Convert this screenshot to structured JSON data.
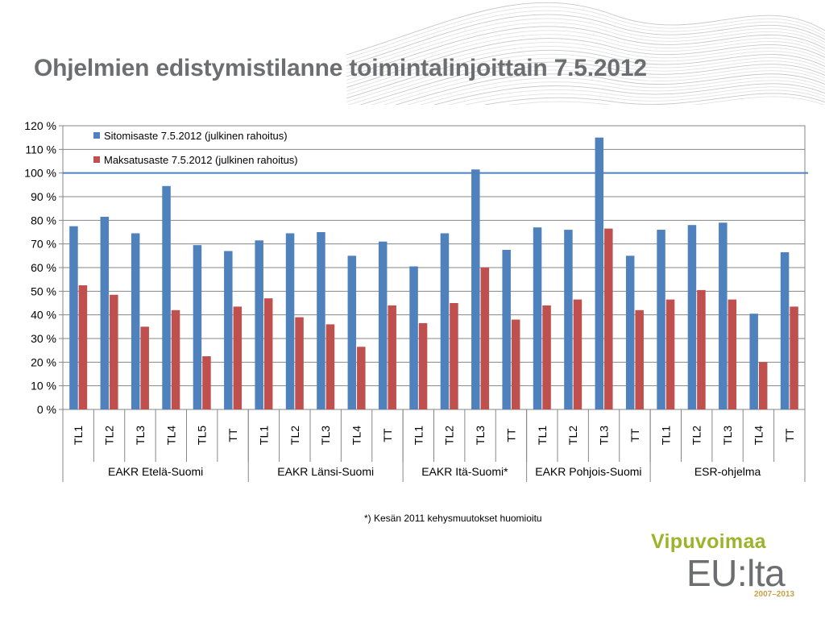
{
  "slide": {
    "title": "Ohjelmien edistymistilanne toimintalinjoittain 7.5.2012",
    "footnote": "*) Kesän 2011 kehysmuutokset huomioitu",
    "logo": {
      "line1": "Vipuvoimaa",
      "line2": "EU:lta",
      "line3": "2007–2013"
    }
  },
  "colors": {
    "series1": "#4f81bd",
    "series2": "#c0504d",
    "title": "#6d6e71",
    "reference_line": "#4f81bd"
  },
  "chart_data": {
    "type": "bar",
    "title": "",
    "xlabel": "",
    "ylabel": "",
    "ylim": [
      0,
      120
    ],
    "y_ticks": [
      "0 %",
      "10 %",
      "20 %",
      "30 %",
      "40 %",
      "50 %",
      "60 %",
      "70 %",
      "80 %",
      "90 %",
      "100 %",
      "110 %",
      "120 %"
    ],
    "reference_line": 100,
    "grid": true,
    "legend_position": "top-left",
    "categories": [
      "TL1",
      "TL2",
      "TL3",
      "TL4",
      "TL5",
      "TT",
      "TL1",
      "TL2",
      "TL3",
      "TL4",
      "TT",
      "TL1",
      "TL2",
      "TL3",
      "TT",
      "TL1",
      "TL2",
      "TL3",
      "TT",
      "TL1",
      "TL2",
      "TL3",
      "TL4",
      "TT"
    ],
    "groups": [
      {
        "name": "EAKR Etelä-Suomi",
        "count": 6
      },
      {
        "name": "EAKR Länsi-Suomi",
        "count": 5
      },
      {
        "name": "EAKR Itä-Suomi*",
        "count": 4
      },
      {
        "name": "EAKR Pohjois-Suomi",
        "count": 4
      },
      {
        "name": "ESR-ohjelma",
        "count": 5
      }
    ],
    "series": [
      {
        "name": "Sitomisaste 7.5.2012 (julkinen rahoitus)",
        "values": [
          77.5,
          81.5,
          74.5,
          94.5,
          69.5,
          67,
          71.5,
          74.5,
          75,
          65,
          71,
          60.5,
          74.5,
          101.5,
          67.5,
          77,
          76,
          115,
          65,
          76,
          78,
          79,
          40.5,
          66.5
        ]
      },
      {
        "name": "Maksatusaste 7.5.2012 (julkinen rahoitus)",
        "values": [
          52.5,
          48.5,
          35,
          42,
          22.5,
          43.5,
          47,
          39,
          36,
          26.5,
          44,
          36.5,
          45,
          60,
          38,
          44,
          46.5,
          76.5,
          42,
          46.5,
          50.5,
          46.5,
          20,
          43.5
        ]
      }
    ]
  }
}
